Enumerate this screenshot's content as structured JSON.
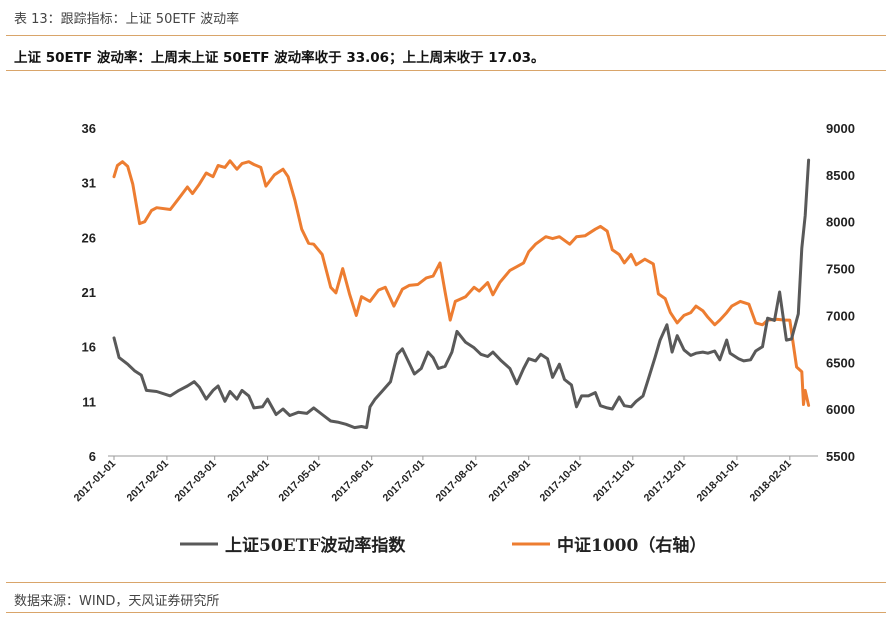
{
  "header": {
    "caption": "表 13：跟踪指标：上证 50ETF 波动率",
    "summary": "上证 50ETF 波动率：上周末上证 50ETF 波动率收于 33.06；上上周末收于 17.03。"
  },
  "footer": {
    "source": "数据来源：WIND，天风证券研究所"
  },
  "colors": {
    "vol": "#595959",
    "csi": "#ed7d31",
    "rule": "#d9a56a"
  },
  "chart_data": {
    "type": "line",
    "grid": false,
    "legend_placement": "bottom",
    "x": {
      "start": "2017-01-01",
      "end": "2018-02-14",
      "ticks": [
        "2017-01-01",
        "2017-02-01",
        "2017-03-01",
        "2017-04-01",
        "2017-05-01",
        "2017-06-01",
        "2017-07-01",
        "2017-08-01",
        "2017-09-01",
        "2017-10-01",
        "2017-11-01",
        "2017-12-01",
        "2018-01-01",
        "2018-02-01"
      ]
    },
    "y_left": {
      "min": 6,
      "max": 36,
      "ticks": [
        "36",
        "31",
        "26",
        "21",
        "16",
        "11",
        "6"
      ]
    },
    "y_right": {
      "min": 5500,
      "max": 9000,
      "ticks": [
        "9000",
        "8500",
        "8000",
        "7500",
        "7000",
        "6500",
        "6000",
        "5500"
      ]
    },
    "series": [
      {
        "name": "上证50ETF波动率指数",
        "axis": "left",
        "color": "#595959",
        "points": [
          [
            "2017-01-01",
            16.8
          ],
          [
            "2017-01-04",
            15.0
          ],
          [
            "2017-01-09",
            14.4
          ],
          [
            "2017-01-13",
            13.8
          ],
          [
            "2017-01-17",
            13.4
          ],
          [
            "2017-01-20",
            12.0
          ],
          [
            "2017-01-26",
            11.9
          ],
          [
            "2017-02-03",
            11.5
          ],
          [
            "2017-02-08",
            12.0
          ],
          [
            "2017-02-13",
            12.4
          ],
          [
            "2017-02-17",
            12.8
          ],
          [
            "2017-02-20",
            12.3
          ],
          [
            "2017-02-24",
            11.2
          ],
          [
            "2017-02-28",
            12.0
          ],
          [
            "2017-03-03",
            12.4
          ],
          [
            "2017-03-07",
            11.0
          ],
          [
            "2017-03-10",
            11.9
          ],
          [
            "2017-03-14",
            11.2
          ],
          [
            "2017-03-17",
            12.0
          ],
          [
            "2017-03-21",
            11.5
          ],
          [
            "2017-03-24",
            10.4
          ],
          [
            "2017-03-29",
            10.5
          ],
          [
            "2017-04-01",
            11.2
          ],
          [
            "2017-04-06",
            9.8
          ],
          [
            "2017-04-10",
            10.3
          ],
          [
            "2017-04-14",
            9.7
          ],
          [
            "2017-04-19",
            10.0
          ],
          [
            "2017-04-24",
            9.9
          ],
          [
            "2017-04-28",
            10.4
          ],
          [
            "2017-05-03",
            9.8
          ],
          [
            "2017-05-08",
            9.2
          ],
          [
            "2017-05-12",
            9.1
          ],
          [
            "2017-05-17",
            8.9
          ],
          [
            "2017-05-22",
            8.6
          ],
          [
            "2017-05-26",
            8.7
          ],
          [
            "2017-05-29",
            8.6
          ],
          [
            "2017-05-31",
            10.5
          ],
          [
            "2017-06-03",
            11.2
          ],
          [
            "2017-06-07",
            11.9
          ],
          [
            "2017-06-12",
            12.8
          ],
          [
            "2017-06-16",
            15.3
          ],
          [
            "2017-06-19",
            15.8
          ],
          [
            "2017-06-23",
            14.5
          ],
          [
            "2017-06-26",
            13.5
          ],
          [
            "2017-06-30",
            14.0
          ],
          [
            "2017-07-04",
            15.5
          ],
          [
            "2017-07-07",
            15.0
          ],
          [
            "2017-07-10",
            14.0
          ],
          [
            "2017-07-14",
            14.2
          ],
          [
            "2017-07-18",
            15.5
          ],
          [
            "2017-07-21",
            17.4
          ],
          [
            "2017-07-26",
            16.4
          ],
          [
            "2017-07-31",
            15.9
          ],
          [
            "2017-08-04",
            15.3
          ],
          [
            "2017-08-08",
            15.1
          ],
          [
            "2017-08-11",
            15.5
          ],
          [
            "2017-08-16",
            14.7
          ],
          [
            "2017-08-21",
            14.0
          ],
          [
            "2017-08-25",
            12.6
          ],
          [
            "2017-08-29",
            14.0
          ],
          [
            "2017-09-01",
            14.9
          ],
          [
            "2017-09-05",
            14.7
          ],
          [
            "2017-09-08",
            15.3
          ],
          [
            "2017-09-12",
            14.9
          ],
          [
            "2017-09-15",
            13.2
          ],
          [
            "2017-09-19",
            14.4
          ],
          [
            "2017-09-22",
            13.0
          ],
          [
            "2017-09-26",
            12.5
          ],
          [
            "2017-09-29",
            10.5
          ],
          [
            "2017-10-02",
            11.5
          ],
          [
            "2017-10-06",
            11.5
          ],
          [
            "2017-10-10",
            11.8
          ],
          [
            "2017-10-13",
            10.6
          ],
          [
            "2017-10-17",
            10.4
          ],
          [
            "2017-10-20",
            10.3
          ],
          [
            "2017-10-24",
            11.4
          ],
          [
            "2017-10-27",
            10.6
          ],
          [
            "2017-10-31",
            10.5
          ],
          [
            "2017-11-03",
            11.0
          ],
          [
            "2017-11-07",
            11.5
          ],
          [
            "2017-11-10",
            13.0
          ],
          [
            "2017-11-14",
            15.0
          ],
          [
            "2017-11-17",
            16.6
          ],
          [
            "2017-11-21",
            18.0
          ],
          [
            "2017-11-24",
            15.5
          ],
          [
            "2017-11-27",
            17.0
          ],
          [
            "2017-12-01",
            15.7
          ],
          [
            "2017-12-05",
            15.2
          ],
          [
            "2017-12-08",
            15.4
          ],
          [
            "2017-12-12",
            15.5
          ],
          [
            "2017-12-15",
            15.4
          ],
          [
            "2017-12-19",
            15.6
          ],
          [
            "2017-12-22",
            14.8
          ],
          [
            "2017-12-26",
            16.6
          ],
          [
            "2017-12-28",
            15.4
          ],
          [
            "2018-01-02",
            14.9
          ],
          [
            "2018-01-05",
            14.7
          ],
          [
            "2018-01-09",
            14.8
          ],
          [
            "2018-01-12",
            15.6
          ],
          [
            "2018-01-16",
            16.0
          ],
          [
            "2018-01-19",
            18.6
          ],
          [
            "2018-01-23",
            18.4
          ],
          [
            "2018-01-26",
            21.0
          ],
          [
            "2018-01-30",
            16.6
          ],
          [
            "2018-02-02",
            16.7
          ],
          [
            "2018-02-06",
            19.0
          ],
          [
            "2018-02-08",
            25.0
          ],
          [
            "2018-02-10",
            28.0
          ],
          [
            "2018-02-12",
            33.06
          ]
        ]
      },
      {
        "name": "中证1000（右轴）",
        "axis": "right",
        "color": "#ed7d31",
        "points": [
          [
            "2017-01-01",
            8480
          ],
          [
            "2017-01-03",
            8600
          ],
          [
            "2017-01-06",
            8640
          ],
          [
            "2017-01-09",
            8590
          ],
          [
            "2017-01-12",
            8400
          ],
          [
            "2017-01-16",
            7980
          ],
          [
            "2017-01-19",
            8000
          ],
          [
            "2017-01-23",
            8120
          ],
          [
            "2017-01-26",
            8150
          ],
          [
            "2017-02-03",
            8130
          ],
          [
            "2017-02-08",
            8250
          ],
          [
            "2017-02-13",
            8370
          ],
          [
            "2017-02-16",
            8300
          ],
          [
            "2017-02-20",
            8400
          ],
          [
            "2017-02-24",
            8520
          ],
          [
            "2017-02-28",
            8480
          ],
          [
            "2017-03-03",
            8600
          ],
          [
            "2017-03-07",
            8580
          ],
          [
            "2017-03-10",
            8650
          ],
          [
            "2017-03-14",
            8560
          ],
          [
            "2017-03-17",
            8620
          ],
          [
            "2017-03-21",
            8640
          ],
          [
            "2017-03-24",
            8610
          ],
          [
            "2017-03-28",
            8580
          ],
          [
            "2017-03-31",
            8380
          ],
          [
            "2017-04-05",
            8500
          ],
          [
            "2017-04-10",
            8560
          ],
          [
            "2017-04-13",
            8480
          ],
          [
            "2017-04-17",
            8230
          ],
          [
            "2017-04-21",
            7920
          ],
          [
            "2017-04-25",
            7770
          ],
          [
            "2017-04-28",
            7760
          ],
          [
            "2017-05-03",
            7650
          ],
          [
            "2017-05-08",
            7300
          ],
          [
            "2017-05-11",
            7240
          ],
          [
            "2017-05-15",
            7500
          ],
          [
            "2017-05-19",
            7230
          ],
          [
            "2017-05-23",
            7000
          ],
          [
            "2017-05-26",
            7200
          ],
          [
            "2017-05-31",
            7150
          ],
          [
            "2017-06-05",
            7270
          ],
          [
            "2017-06-09",
            7300
          ],
          [
            "2017-06-14",
            7100
          ],
          [
            "2017-06-19",
            7280
          ],
          [
            "2017-06-23",
            7320
          ],
          [
            "2017-06-28",
            7330
          ],
          [
            "2017-07-03",
            7400
          ],
          [
            "2017-07-07",
            7420
          ],
          [
            "2017-07-11",
            7560
          ],
          [
            "2017-07-14",
            7250
          ],
          [
            "2017-07-17",
            6950
          ],
          [
            "2017-07-20",
            7150
          ],
          [
            "2017-07-26",
            7200
          ],
          [
            "2017-07-31",
            7300
          ],
          [
            "2017-08-03",
            7260
          ],
          [
            "2017-08-08",
            7350
          ],
          [
            "2017-08-11",
            7220
          ],
          [
            "2017-08-15",
            7350
          ],
          [
            "2017-08-21",
            7480
          ],
          [
            "2017-08-25",
            7520
          ],
          [
            "2017-08-29",
            7560
          ],
          [
            "2017-09-01",
            7680
          ],
          [
            "2017-09-05",
            7760
          ],
          [
            "2017-09-11",
            7840
          ],
          [
            "2017-09-15",
            7820
          ],
          [
            "2017-09-19",
            7840
          ],
          [
            "2017-09-25",
            7760
          ],
          [
            "2017-09-29",
            7840
          ],
          [
            "2017-10-04",
            7850
          ],
          [
            "2017-10-10",
            7920
          ],
          [
            "2017-10-13",
            7950
          ],
          [
            "2017-10-17",
            7900
          ],
          [
            "2017-10-20",
            7700
          ],
          [
            "2017-10-24",
            7650
          ],
          [
            "2017-10-27",
            7560
          ],
          [
            "2017-10-31",
            7650
          ],
          [
            "2017-11-03",
            7540
          ],
          [
            "2017-11-08",
            7600
          ],
          [
            "2017-11-13",
            7550
          ],
          [
            "2017-11-16",
            7230
          ],
          [
            "2017-11-20",
            7180
          ],
          [
            "2017-11-23",
            7030
          ],
          [
            "2017-11-27",
            6920
          ],
          [
            "2017-12-01",
            7000
          ],
          [
            "2017-12-05",
            7030
          ],
          [
            "2017-12-08",
            7100
          ],
          [
            "2017-12-12",
            7050
          ],
          [
            "2017-12-15",
            6980
          ],
          [
            "2017-12-19",
            6900
          ],
          [
            "2017-12-22",
            6950
          ],
          [
            "2017-12-26",
            7030
          ],
          [
            "2017-12-29",
            7100
          ],
          [
            "2018-01-03",
            7150
          ],
          [
            "2018-01-08",
            7120
          ],
          [
            "2018-01-12",
            6920
          ],
          [
            "2018-01-16",
            6900
          ],
          [
            "2018-01-19",
            6950
          ],
          [
            "2018-01-24",
            6960
          ],
          [
            "2018-01-29",
            6950
          ],
          [
            "2018-02-01",
            6950
          ],
          [
            "2018-02-05",
            6450
          ],
          [
            "2018-02-08",
            6400
          ],
          [
            "2018-02-09",
            6050
          ],
          [
            "2018-02-10",
            6200
          ],
          [
            "2018-02-12",
            6040
          ]
        ]
      }
    ]
  }
}
